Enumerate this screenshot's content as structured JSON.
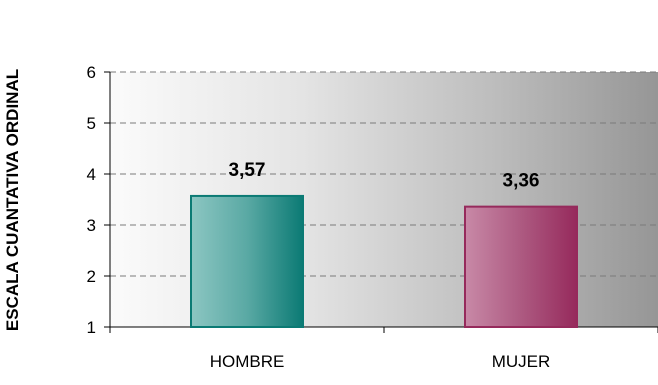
{
  "chart_data": {
    "type": "bar",
    "categories": [
      "HOMBRE",
      "MUJER"
    ],
    "values": [
      3.57,
      3.36
    ],
    "value_labels": [
      "3,57",
      "3,36"
    ],
    "title": "",
    "xlabel": "",
    "ylabel": "ESCALA CUANTATIVA ORDINAL",
    "ylim": [
      1,
      6
    ],
    "yticks": [
      1,
      2,
      3,
      4,
      5,
      6
    ],
    "grid": true,
    "grid_style": "dashed",
    "legend": "none",
    "plot_background": "gradient light-to-dark gray",
    "bar_colors": [
      "#0d7d77",
      "#a3305f"
    ]
  }
}
